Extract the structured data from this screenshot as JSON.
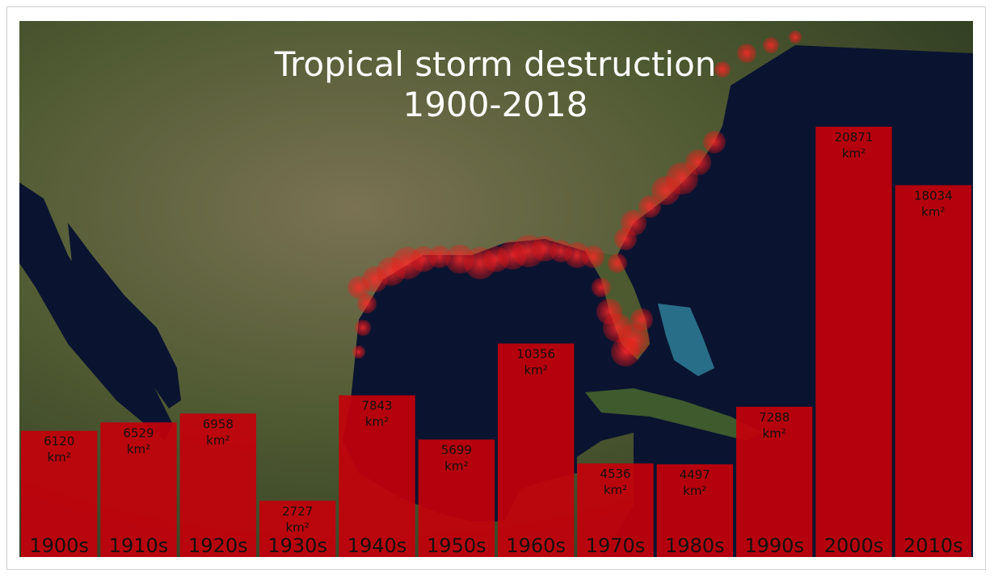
{
  "chart_data": {
    "type": "bar",
    "title": "Tropical storm destruction",
    "subtitle": "1900-2018",
    "unit": "km²",
    "categories": [
      "1900s",
      "1910s",
      "1920s",
      "1930s",
      "1940s",
      "1950s",
      "1960s",
      "1970s",
      "1980s",
      "1990s",
      "2000s",
      "2010s"
    ],
    "values": [
      6120,
      6529,
      6958,
      2727,
      7843,
      5699,
      10356,
      4536,
      4497,
      7288,
      20871,
      18034
    ],
    "ylim": [
      0,
      26000
    ],
    "bar_color": "#c4000b",
    "grid": false,
    "background": "satellite map of North America and the Gulf of Mexico with red storm-impact circles along the coastline"
  }
}
